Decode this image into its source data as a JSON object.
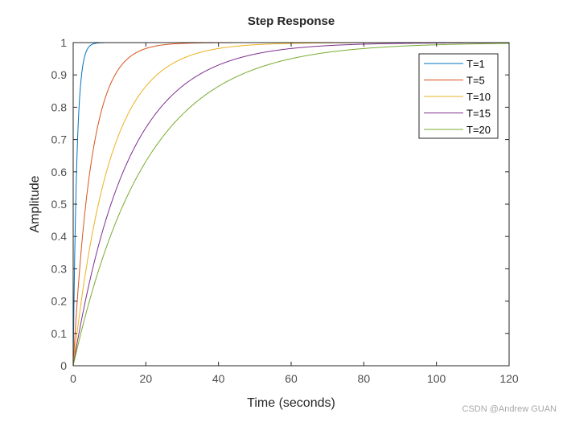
{
  "chart_data": {
    "type": "line",
    "title": "Step Response",
    "xlabel": "Time (seconds)",
    "ylabel": "Amplitude",
    "xlim": [
      0,
      120
    ],
    "ylim": [
      0,
      1
    ],
    "xticks": [
      0,
      20,
      40,
      60,
      80,
      100,
      120
    ],
    "yticks": [
      0,
      0.1,
      0.2,
      0.3,
      0.4,
      0.5,
      0.6,
      0.7,
      0.8,
      0.9,
      1
    ],
    "ytick_labels": [
      "0",
      "0.1",
      "0.2",
      "0.3",
      "0.4",
      "0.5",
      "0.6",
      "0.7",
      "0.8",
      "0.9",
      "1"
    ],
    "grid": false,
    "legend_position": "northeast",
    "model": "first-order step response y(t) = 1 - exp(-t/T)",
    "x": [
      0,
      1,
      2,
      5,
      10,
      15,
      20,
      30,
      40,
      60,
      80,
      100,
      120
    ],
    "series": [
      {
        "name": "T=1",
        "T": 1,
        "color": "#0072BD",
        "values": [
          0,
          0.632,
          0.865,
          0.993,
          1.0,
          1.0,
          1.0,
          1.0,
          1.0,
          1.0,
          1.0,
          1.0,
          1.0
        ]
      },
      {
        "name": "T=5",
        "T": 5,
        "color": "#D95319",
        "values": [
          0,
          0.181,
          0.33,
          0.632,
          0.865,
          0.95,
          0.982,
          0.998,
          1.0,
          1.0,
          1.0,
          1.0,
          1.0
        ]
      },
      {
        "name": "T=10",
        "T": 10,
        "color": "#EDB120",
        "values": [
          0,
          0.095,
          0.181,
          0.393,
          0.632,
          0.777,
          0.865,
          0.95,
          0.982,
          0.998,
          1.0,
          1.0,
          1.0
        ]
      },
      {
        "name": "T=15",
        "T": 15,
        "color": "#7E2F8E",
        "values": [
          0,
          0.064,
          0.125,
          0.283,
          0.487,
          0.632,
          0.736,
          0.865,
          0.931,
          0.982,
          0.995,
          0.999,
          1.0
        ]
      },
      {
        "name": "T=20",
        "T": 20,
        "color": "#77AC30",
        "values": [
          0,
          0.049,
          0.095,
          0.221,
          0.393,
          0.528,
          0.632,
          0.777,
          0.865,
          0.95,
          0.982,
          0.993,
          0.998
        ]
      }
    ]
  },
  "watermark": "CSDN @Andrew GUAN"
}
